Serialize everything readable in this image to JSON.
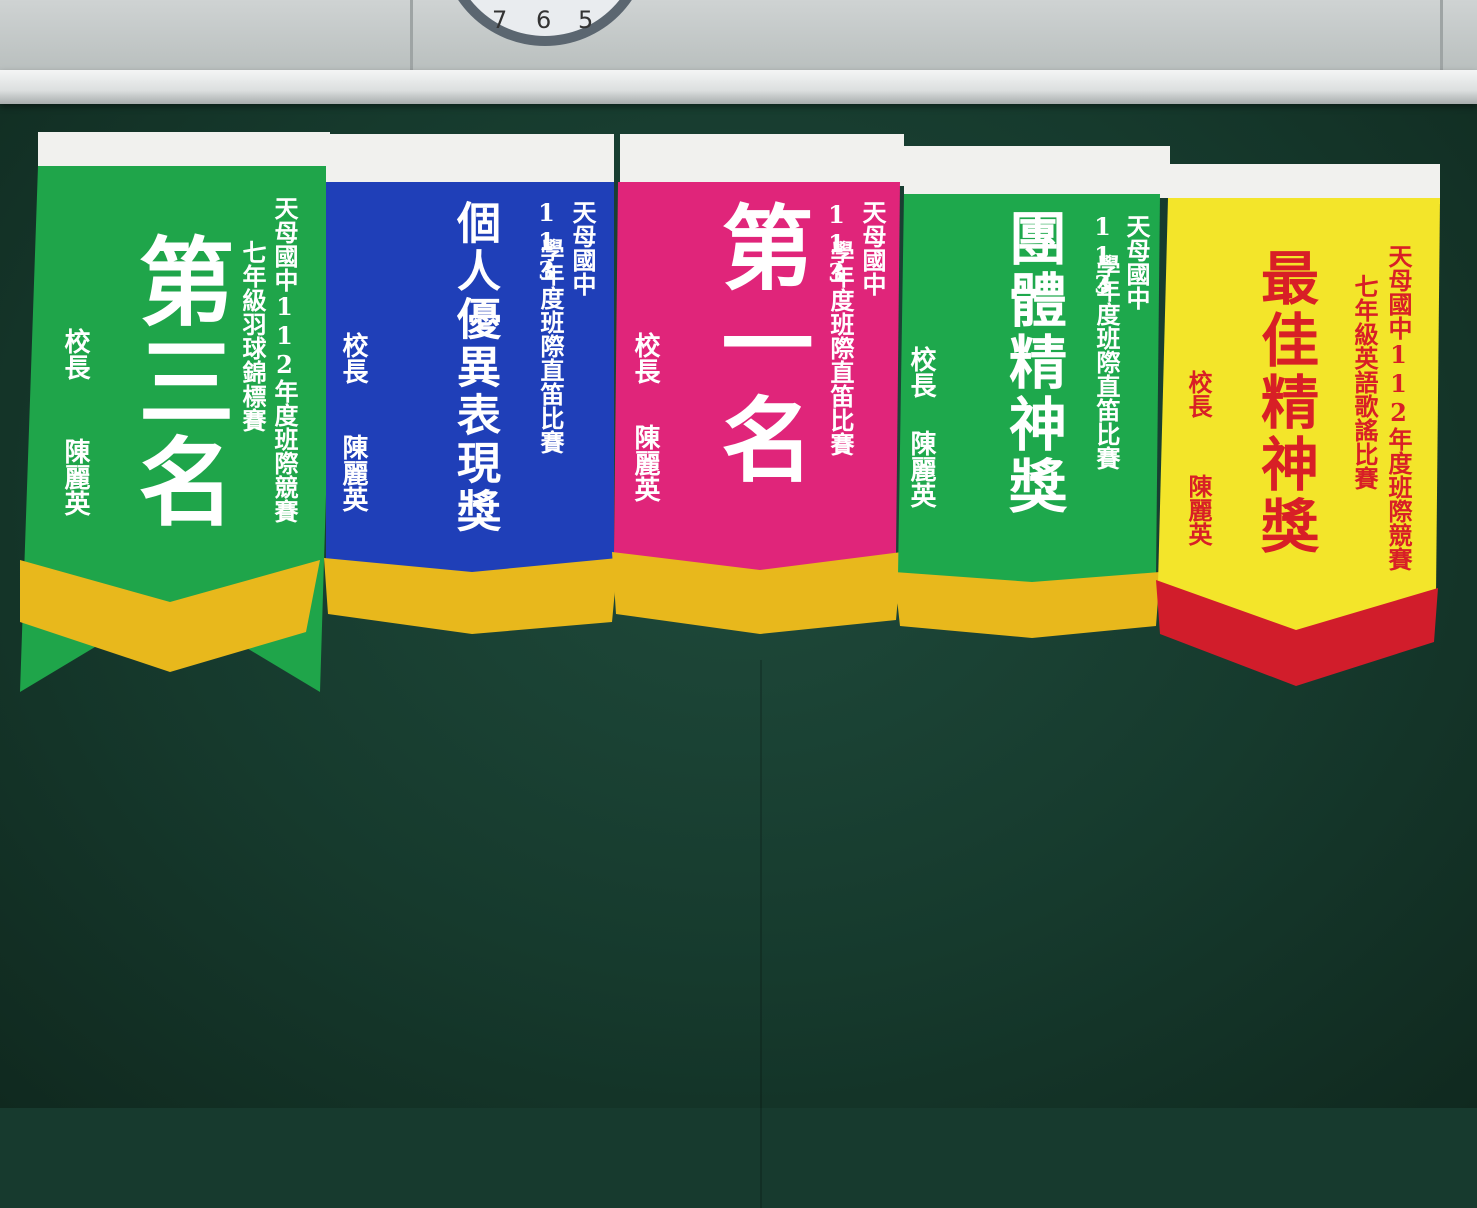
{
  "scene": {
    "clock_numerals": [
      "7",
      "6",
      "5"
    ],
    "board_color": "#173a2e"
  },
  "pennants": [
    {
      "color": "#1fa54a",
      "fringe_color": "#e8b81c",
      "text_color": "#ffffff",
      "award": "第三名",
      "title_line1": "天母國中112年度班際競賽",
      "title_line2": "七年級羽球錦標賽",
      "principal_title": "校長",
      "principal_name": "陳麗英"
    },
    {
      "color": "#1f3fb8",
      "fringe_color": "#e8b81c",
      "text_color": "#ffffff",
      "award": "個人優異表現獎",
      "year_prefix": "113",
      "title_line1": "天母國中",
      "title_line2": "學年度班際直笛比賽",
      "principal_title": "校長",
      "principal_name": "陳麗英"
    },
    {
      "color": "#e0257a",
      "fringe_color": "#e8b81c",
      "text_color": "#ffffff",
      "award": "第一名",
      "year_prefix": "113",
      "title_line1": "天母國中",
      "title_line2": "學年度班際直笛比賽",
      "principal_title": "校長",
      "principal_name": "陳麗英"
    },
    {
      "color": "#1ea84c",
      "fringe_color": "#e8b81c",
      "text_color": "#ffffff",
      "award": "團體精神獎",
      "year_prefix": "113",
      "title_line1": "天母國中",
      "title_line2": "學年度班際直笛比賽",
      "principal_title": "校長",
      "principal_name": "陳麗英"
    },
    {
      "color": "#f3e52a",
      "fringe_color": "#d11d2b",
      "text_color": "#d81f26",
      "award": "最佳精神獎",
      "title_line1": "天母國中112年度班際競賽",
      "title_line2": "七年級英語歌謠比賽",
      "principal_title": "校長",
      "principal_name": "陳麗英"
    }
  ]
}
